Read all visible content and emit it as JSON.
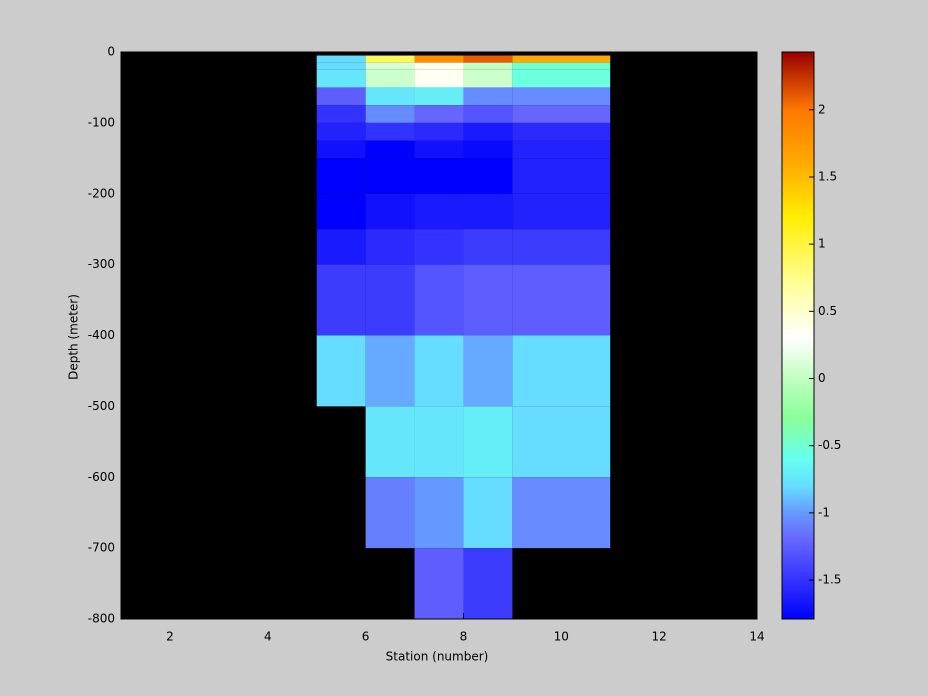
{
  "chart_data": {
    "type": "heatmap",
    "xlabel": "Station (number)",
    "ylabel": "Depth (meter)",
    "x_edges": [
      5,
      6,
      7,
      8,
      9,
      11
    ],
    "y_edges": [
      -5,
      -15,
      -25,
      -50,
      -75,
      -100,
      -125,
      -150,
      -200,
      -250,
      -300,
      -400,
      -500,
      -600,
      -700,
      -800
    ],
    "values": [
      [
        -0.8,
        0.9,
        1.8,
        2.1,
        1.6
      ],
      [
        -0.8,
        0.1,
        0.35,
        0.0,
        -0.5
      ],
      [
        -0.75,
        0.05,
        0.35,
        0.05,
        -0.55
      ],
      [
        -1.25,
        -0.75,
        -0.7,
        -1.05,
        -1.05
      ],
      [
        -1.5,
        -1.05,
        -1.2,
        -1.3,
        -1.2
      ],
      [
        -1.6,
        -1.5,
        -1.55,
        -1.65,
        -1.55
      ],
      [
        -1.7,
        -1.8,
        -1.7,
        -1.75,
        -1.6
      ],
      [
        -1.8,
        -1.8,
        -1.8,
        -1.8,
        -1.6
      ],
      [
        -1.8,
        -1.7,
        -1.65,
        -1.65,
        -1.6
      ],
      [
        -1.65,
        -1.55,
        -1.5,
        -1.45,
        -1.45
      ],
      [
        -1.45,
        -1.45,
        -1.3,
        -1.25,
        -1.25
      ],
      [
        -0.8,
        -0.95,
        -0.8,
        -0.95,
        -0.8
      ],
      [
        null,
        -0.75,
        -0.75,
        -0.7,
        -0.8
      ],
      [
        null,
        -1.1,
        -1.0,
        -0.8,
        -1.05
      ],
      [
        null,
        null,
        -1.25,
        -1.45,
        null
      ]
    ],
    "xlim": [
      1,
      14
    ],
    "ylim": [
      -800,
      0
    ],
    "xticks": [
      2,
      4,
      6,
      8,
      10,
      12,
      14
    ],
    "yticks": [
      0,
      -100,
      -200,
      -300,
      -400,
      -500,
      -600,
      -700,
      -800
    ],
    "background_color": "#000000",
    "clim": [
      -1.79,
      2.43
    ],
    "cticks": [
      -1.5,
      -1,
      -0.5,
      0,
      0.5,
      1,
      1.5,
      2
    ],
    "colorscale": [
      [
        -1.8,
        "#0000ff"
      ],
      [
        -1.5,
        "#3333ff"
      ],
      [
        -1.2,
        "#6666ff"
      ],
      [
        -1.0,
        "#6699ff"
      ],
      [
        -0.8,
        "#66ddff"
      ],
      [
        -0.6,
        "#66ffee"
      ],
      [
        -0.3,
        "#88ff99"
      ],
      [
        0.0,
        "#c0ffc0"
      ],
      [
        0.3,
        "#ffffff"
      ],
      [
        0.7,
        "#ffff99"
      ],
      [
        1.2,
        "#ffee00"
      ],
      [
        1.6,
        "#ffaa00"
      ],
      [
        2.0,
        "#ff7700"
      ],
      [
        2.43,
        "#990000"
      ]
    ]
  }
}
